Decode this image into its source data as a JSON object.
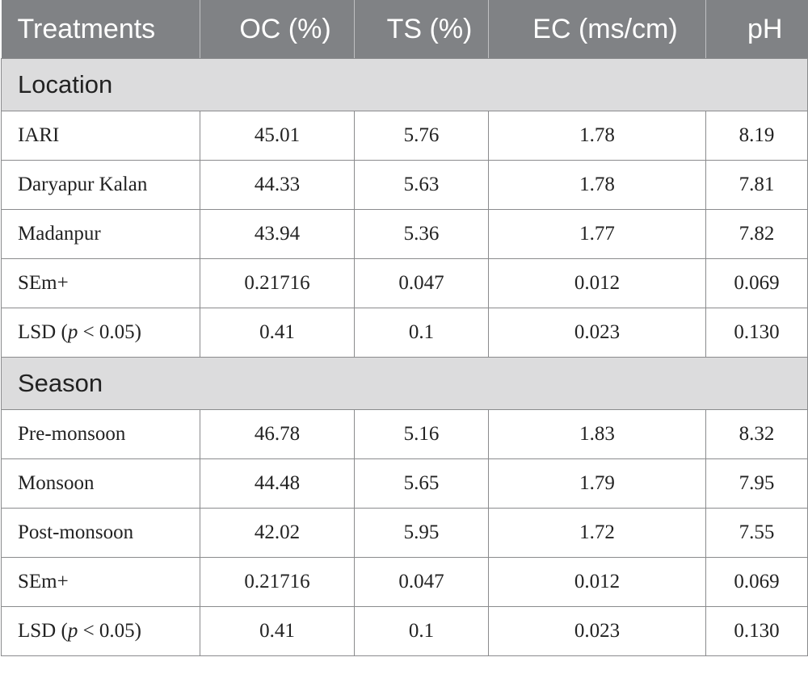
{
  "table": {
    "headers": [
      "Treatments",
      "OC (%)",
      "TS (%)",
      "EC (ms/cm)",
      "pH"
    ],
    "sections": [
      {
        "title": "Location",
        "rows": [
          {
            "label": "IARI",
            "label_pre": "",
            "label_italic": "",
            "label_post": "",
            "values": [
              "45.01",
              "5.76",
              "1.78",
              "8.19"
            ]
          },
          {
            "label": "Daryapur Kalan",
            "label_pre": "",
            "label_italic": "",
            "label_post": "",
            "values": [
              "44.33",
              "5.63",
              "1.78",
              "7.81"
            ]
          },
          {
            "label": "Madanpur",
            "label_pre": "",
            "label_italic": "",
            "label_post": "",
            "values": [
              "43.94",
              "5.36",
              "1.77",
              "7.82"
            ]
          },
          {
            "label": "SEm+",
            "label_pre": "",
            "label_italic": "",
            "label_post": "",
            "values": [
              "0.21716",
              "0.047",
              "0.012",
              "0.069"
            ]
          },
          {
            "label": "",
            "label_pre": "LSD (",
            "label_italic": "p",
            "label_post": " < 0.05)",
            "values": [
              "0.41",
              "0.1",
              "0.023",
              "0.130"
            ]
          }
        ]
      },
      {
        "title": "Season",
        "rows": [
          {
            "label": "Pre-monsoon",
            "label_pre": "",
            "label_italic": "",
            "label_post": "",
            "values": [
              "46.78",
              "5.16",
              "1.83",
              "8.32"
            ]
          },
          {
            "label": "Monsoon",
            "label_pre": "",
            "label_italic": "",
            "label_post": "",
            "values": [
              "44.48",
              "5.65",
              "1.79",
              "7.95"
            ]
          },
          {
            "label": "Post-monsoon",
            "label_pre": "",
            "label_italic": "",
            "label_post": "",
            "values": [
              "42.02",
              "5.95",
              "1.72",
              "7.55"
            ]
          },
          {
            "label": "SEm+",
            "label_pre": "",
            "label_italic": "",
            "label_post": "",
            "values": [
              "0.21716",
              "0.047",
              "0.012",
              "0.069"
            ]
          },
          {
            "label": "",
            "label_pre": "LSD (",
            "label_italic": "p",
            "label_post": " < 0.05)",
            "values": [
              "0.41",
              "0.1",
              "0.023",
              "0.130"
            ]
          }
        ]
      }
    ]
  }
}
